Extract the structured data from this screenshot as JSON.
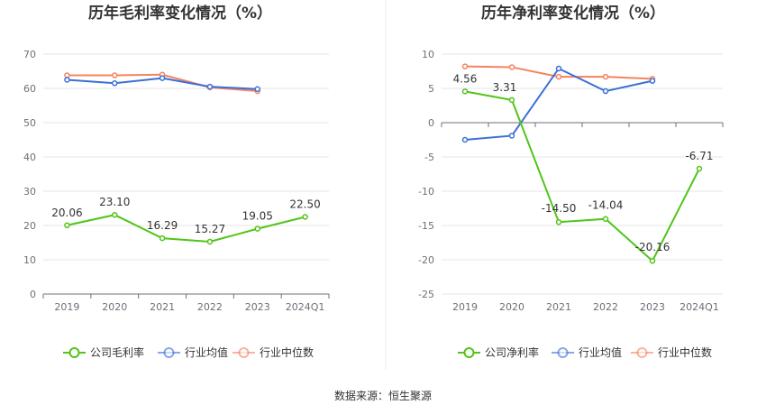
{
  "footer": {
    "source": "数据来源：恒生聚源"
  },
  "chart_data": [
    {
      "type": "line",
      "title": "历年毛利率变化情况（%）",
      "categories": [
        "2019",
        "2020",
        "2021",
        "2022",
        "2023",
        "2024Q1"
      ],
      "ylim": [
        0,
        70
      ],
      "yticks": [
        0,
        10,
        20,
        30,
        40,
        50,
        60,
        70
      ],
      "grid": true,
      "legend_position": "bottom",
      "series": [
        {
          "name": "公司毛利率",
          "color": "#52c41a",
          "values": [
            20.06,
            23.1,
            16.29,
            15.27,
            19.05,
            22.5
          ],
          "labels": [
            "20.06",
            "23.10",
            "16.29",
            "15.27",
            "19.05",
            "22.50"
          ]
        },
        {
          "name": "行业均值",
          "color": "#3b6fd8",
          "values": [
            62.5,
            61.5,
            63.0,
            60.5,
            59.8,
            null
          ]
        },
        {
          "name": "行业中位数",
          "color": "#f4845f",
          "values": [
            63.8,
            63.8,
            64.0,
            60.3,
            59.2,
            null
          ]
        }
      ]
    },
    {
      "type": "line",
      "title": "历年净利率变化情况（%）",
      "categories": [
        "2019",
        "2020",
        "2021",
        "2022",
        "2023",
        "2024Q1"
      ],
      "ylim": [
        -25,
        10
      ],
      "yticks": [
        -25,
        -20,
        -15,
        -10,
        -5,
        0,
        5,
        10
      ],
      "grid": true,
      "legend_position": "bottom",
      "series": [
        {
          "name": "公司净利率",
          "color": "#52c41a",
          "values": [
            4.56,
            3.31,
            -14.5,
            -14.04,
            -20.16,
            -6.71
          ],
          "labels": [
            "4.56",
            "3.31",
            "-14.50",
            "-14.04",
            "-20.16",
            "-6.71"
          ]
        },
        {
          "name": "行业均值",
          "color": "#3b6fd8",
          "values": [
            -2.5,
            -1.9,
            7.9,
            4.6,
            6.1,
            null
          ]
        },
        {
          "name": "行业中位数",
          "color": "#f4845f",
          "values": [
            8.2,
            8.1,
            6.7,
            6.7,
            6.4,
            null
          ]
        }
      ]
    }
  ]
}
